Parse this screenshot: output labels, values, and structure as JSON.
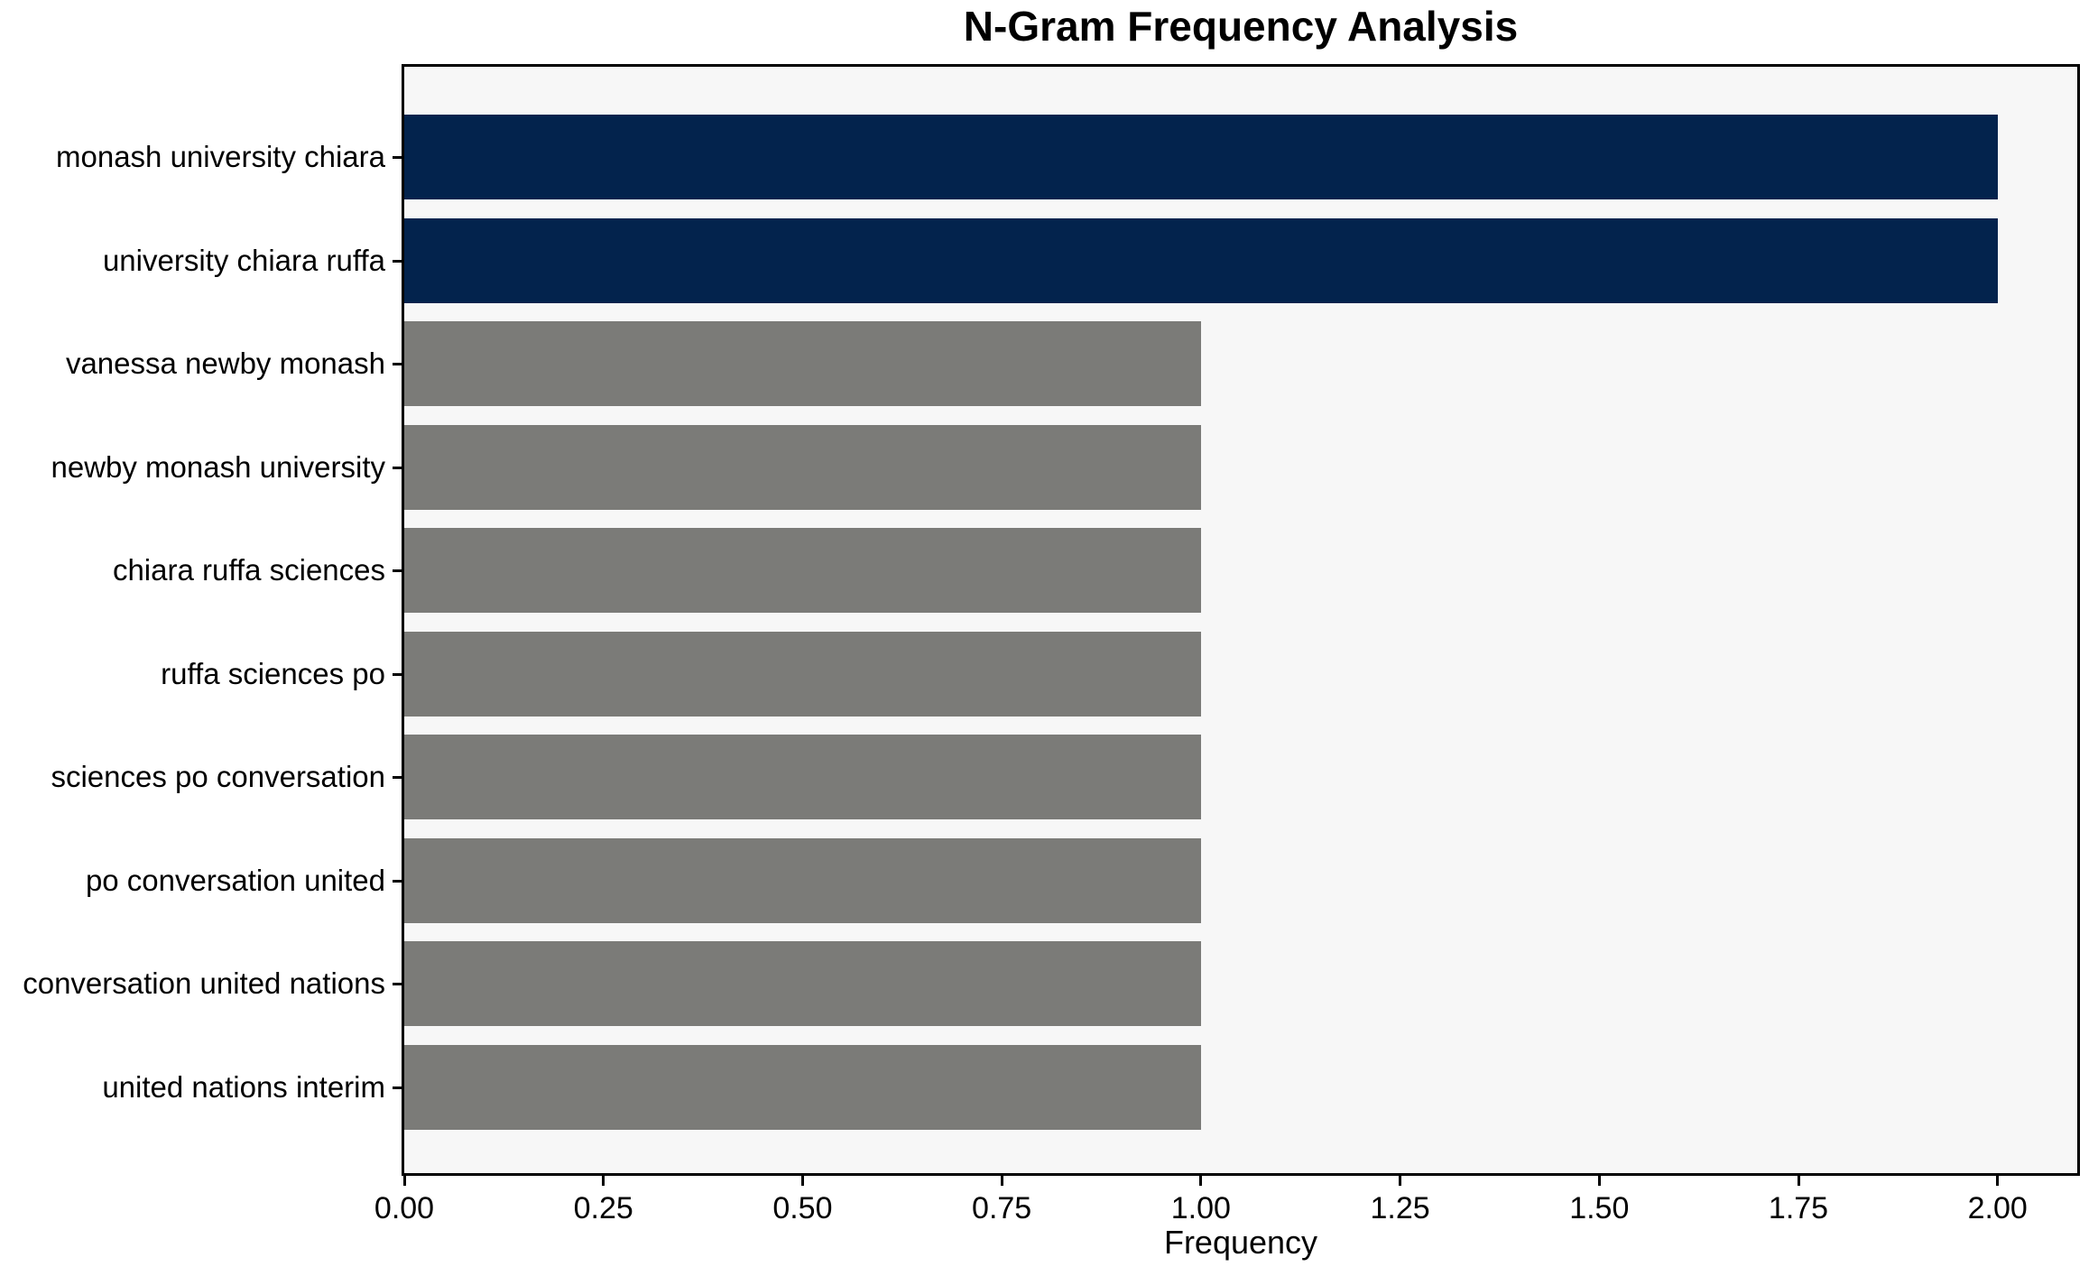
{
  "chart_data": {
    "type": "bar",
    "orientation": "horizontal",
    "title": "N-Gram Frequency Analysis",
    "xlabel": "Frequency",
    "ylabel": "",
    "categories": [
      "monash university chiara",
      "university chiara ruffa",
      "vanessa newby monash",
      "newby monash university",
      "chiara ruffa sciences",
      "ruffa sciences po",
      "sciences po conversation",
      "po conversation united",
      "conversation united nations",
      "united nations interim"
    ],
    "values": [
      2,
      2,
      1,
      1,
      1,
      1,
      1,
      1,
      1,
      1
    ],
    "bar_colors": [
      "#03234d",
      "#03234d",
      "#7b7b78",
      "#7b7b78",
      "#7b7b78",
      "#7b7b78",
      "#7b7b78",
      "#7b7b78",
      "#7b7b78",
      "#7b7b78"
    ],
    "xlim": [
      0,
      2.1
    ],
    "xticks": [
      0.0,
      0.25,
      0.5,
      0.75,
      1.0,
      1.25,
      1.5,
      1.75,
      2.0
    ],
    "xtick_labels": [
      "0.00",
      "0.25",
      "0.50",
      "0.75",
      "1.00",
      "1.25",
      "1.50",
      "1.75",
      "2.00"
    ],
    "grid": false,
    "legend": null,
    "colors": {
      "highlight": "#03234d",
      "default": "#7b7b78",
      "plot_background": "#f7f7f7",
      "figure_background": "#ffffff",
      "spine": "#000000",
      "text": "#000000"
    }
  }
}
